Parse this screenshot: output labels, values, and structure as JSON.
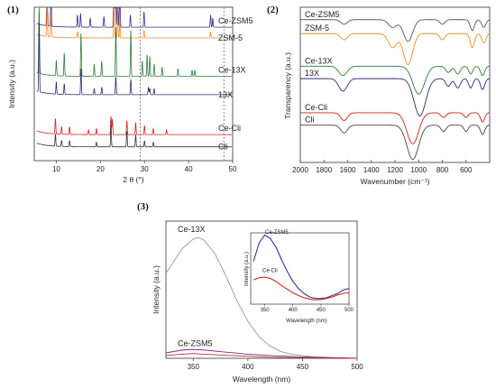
{
  "figure": {
    "panel_labels": [
      "(1)",
      "(2)",
      "(3)"
    ]
  },
  "chart_data": [
    {
      "type": "line",
      "panel": "(1)",
      "xlabel": "2 θ (°)",
      "ylabel": "Intensity (a.u.)",
      "xlim": [
        5,
        50
      ],
      "x_ticks": [
        "10",
        "20",
        "30",
        "40",
        "50"
      ],
      "reference_lines": [
        29,
        48
      ],
      "series": [
        {
          "name": "Ce-ZSM5",
          "color": "#3b2a8a",
          "offset": 0.87,
          "peaks": [
            [
              7.9,
              0.4
            ],
            [
              8.8,
              0.3
            ],
            [
              14.8,
              0.08
            ],
            [
              15.5,
              0.09
            ],
            [
              17.7,
              0.06
            ],
            [
              20.8,
              0.07
            ],
            [
              23.1,
              1.0
            ],
            [
              23.4,
              0.8
            ],
            [
              23.9,
              0.55
            ],
            [
              24.4,
              0.3
            ],
            [
              26.8,
              0.08
            ],
            [
              29.9,
              0.1
            ],
            [
              45.0,
              0.08
            ],
            [
              45.5,
              0.06
            ]
          ]
        },
        {
          "name": "ZSM-5",
          "color": "#ee8a22",
          "offset": 0.8,
          "peaks": [
            [
              7.9,
              0.22
            ],
            [
              8.8,
              0.16
            ],
            [
              14.8,
              0.04
            ],
            [
              23.1,
              0.26
            ],
            [
              23.9,
              0.18
            ],
            [
              24.4,
              0.1
            ],
            [
              29.9,
              0.05
            ],
            [
              45.0,
              0.04
            ]
          ]
        },
        {
          "name": "Ce-13X",
          "color": "#2f7d3a",
          "offset": 0.55,
          "peaks": [
            [
              6.1,
              0.45
            ],
            [
              10.0,
              0.1
            ],
            [
              11.8,
              0.15
            ],
            [
              15.6,
              0.28
            ],
            [
              18.6,
              0.08
            ],
            [
              20.3,
              0.1
            ],
            [
              23.5,
              0.32
            ],
            [
              26.9,
              0.3
            ],
            [
              29.5,
              0.1
            ],
            [
              30.6,
              0.14
            ],
            [
              31.2,
              0.13
            ],
            [
              32.2,
              0.08
            ],
            [
              34.0,
              0.06
            ],
            [
              37.6,
              0.05
            ],
            [
              40.8,
              0.04
            ],
            [
              41.4,
              0.04
            ]
          ]
        },
        {
          "name": "13X",
          "color": "#2d2d6e",
          "offset": 0.43,
          "peaks": [
            [
              6.1,
              0.45
            ],
            [
              10.0,
              0.08
            ],
            [
              11.8,
              0.07
            ],
            [
              15.6,
              0.17
            ],
            [
              18.6,
              0.04
            ],
            [
              20.3,
              0.05
            ],
            [
              23.5,
              0.12
            ],
            [
              26.9,
              0.1
            ],
            [
              30.9,
              0.05
            ],
            [
              31.2,
              0.04
            ],
            [
              32.2,
              0.04
            ]
          ]
        },
        {
          "name": "Ce-Cli",
          "color": "#cc2020",
          "offset": 0.17,
          "peaks": [
            [
              9.8,
              0.1
            ],
            [
              11.2,
              0.05
            ],
            [
              13.0,
              0.05
            ],
            [
              17.3,
              0.03
            ],
            [
              19.1,
              0.04
            ],
            [
              22.4,
              0.12
            ],
            [
              22.7,
              0.1
            ],
            [
              26.0,
              0.09
            ],
            [
              28.0,
              0.08
            ],
            [
              30.0,
              0.06
            ],
            [
              32.0,
              0.04
            ],
            [
              35.0,
              0.03
            ]
          ]
        },
        {
          "name": "Cli",
          "color": "#333333",
          "offset": 0.09,
          "peaks": [
            [
              9.8,
              0.08
            ],
            [
              11.2,
              0.04
            ],
            [
              13.0,
              0.04
            ],
            [
              19.1,
              0.03
            ],
            [
              22.4,
              0.14
            ],
            [
              26.0,
              0.1
            ],
            [
              28.0,
              0.08
            ],
            [
              30.0,
              0.04
            ],
            [
              32.0,
              0.03
            ]
          ]
        }
      ]
    },
    {
      "type": "line",
      "panel": "(2)",
      "xlabel": "Wavenumber (cm⁻¹)",
      "ylabel": "Transparency (a.u.)",
      "xlim": [
        2000,
        400
      ],
      "x_ticks": [
        "2000",
        "1800",
        "1600",
        "1400",
        "1200",
        "1000",
        "800",
        "600"
      ],
      "series": [
        {
          "name": "Ce-ZSM5",
          "color": "#555555",
          "offset": 0.92,
          "bands": [
            [
              1630,
              0.03,
              40
            ],
            [
              1220,
              0.05,
              50
            ],
            [
              1090,
              0.14,
              55
            ],
            [
              800,
              0.03,
              30
            ],
            [
              547,
              0.07,
              25
            ],
            [
              450,
              0.05,
              25
            ]
          ]
        },
        {
          "name": "ZSM-5",
          "color": "#ee8a22",
          "offset": 0.83,
          "bands": [
            [
              1630,
              0.04,
              40
            ],
            [
              1220,
              0.09,
              50
            ],
            [
              1090,
              0.2,
              55
            ],
            [
              800,
              0.04,
              30
            ],
            [
              547,
              0.09,
              25
            ],
            [
              450,
              0.06,
              25
            ]
          ]
        },
        {
          "name": "Ce-13X",
          "color": "#2f7d3a",
          "offset": 0.62,
          "bands": [
            [
              1640,
              0.06,
              50
            ],
            [
              1000,
              0.18,
              70
            ],
            [
              750,
              0.04,
              30
            ],
            [
              670,
              0.05,
              30
            ],
            [
              560,
              0.05,
              25
            ],
            [
              460,
              0.06,
              25
            ]
          ]
        },
        {
          "name": "13X",
          "color": "#2d2d6e",
          "offset": 0.54,
          "bands": [
            [
              1640,
              0.08,
              50
            ],
            [
              990,
              0.24,
              70
            ],
            [
              750,
              0.05,
              30
            ],
            [
              670,
              0.06,
              30
            ],
            [
              560,
              0.06,
              25
            ],
            [
              460,
              0.07,
              25
            ]
          ]
        },
        {
          "name": "Ce-Cli",
          "color": "#cc2020",
          "offset": 0.32,
          "bands": [
            [
              1630,
              0.05,
              40
            ],
            [
              1050,
              0.2,
              70
            ],
            [
              790,
              0.03,
              30
            ],
            [
              600,
              0.03,
              25
            ],
            [
              460,
              0.06,
              25
            ]
          ]
        },
        {
          "name": "Cli",
          "color": "#444444",
          "offset": 0.24,
          "bands": [
            [
              1630,
              0.05,
              40
            ],
            [
              1050,
              0.22,
              70
            ],
            [
              790,
              0.04,
              30
            ],
            [
              600,
              0.04,
              25
            ],
            [
              460,
              0.06,
              25
            ]
          ]
        }
      ]
    },
    {
      "type": "line",
      "panel": "(3)",
      "xlabel": "Wavelength (nm)",
      "ylabel": "Intensity (a.u.)",
      "xlim": [
        325,
        500
      ],
      "x_ticks": [
        "350",
        "400",
        "450",
        "500"
      ],
      "series": [
        {
          "name": "Ce-13X",
          "color": "#8aa090",
          "points": [
            [
              325,
              0.62
            ],
            [
              330,
              0.68
            ],
            [
              340,
              0.8
            ],
            [
              350,
              0.87
            ],
            [
              355,
              0.88
            ],
            [
              360,
              0.86
            ],
            [
              370,
              0.76
            ],
            [
              380,
              0.6
            ],
            [
              390,
              0.42
            ],
            [
              400,
              0.27
            ],
            [
              410,
              0.16
            ],
            [
              420,
              0.09
            ],
            [
              430,
              0.05
            ],
            [
              440,
              0.03
            ],
            [
              450,
              0.02
            ],
            [
              460,
              0.01
            ],
            [
              480,
              0.005
            ],
            [
              500,
              0.0
            ]
          ]
        },
        {
          "name": "Ce-ZSM5",
          "color": "#7a2a7a",
          "points": [
            [
              325,
              0.04
            ],
            [
              340,
              0.06
            ],
            [
              350,
              0.065
            ],
            [
              360,
              0.06
            ],
            [
              380,
              0.045
            ],
            [
              400,
              0.03
            ],
            [
              420,
              0.02
            ],
            [
              450,
              0.01
            ],
            [
              500,
              0.0
            ]
          ]
        },
        {
          "name": "Ce-Cli",
          "color": "#c03030",
          "points": [
            [
              325,
              0.02
            ],
            [
              340,
              0.03
            ],
            [
              350,
              0.035
            ],
            [
              360,
              0.03
            ],
            [
              380,
              0.022
            ],
            [
              400,
              0.015
            ],
            [
              420,
              0.008
            ],
            [
              450,
              0.004
            ],
            [
              500,
              0.0
            ]
          ]
        }
      ],
      "inset": {
        "xlabel": "Wavelength (nm)",
        "ylabel": "Intensity (a.u.)",
        "xlim": [
          325,
          500
        ],
        "x_ticks": [
          "350",
          "400",
          "450",
          "500"
        ],
        "series": [
          {
            "name": "Ce-ZSM5",
            "color": "#4a2a8a",
            "points": [
              [
                330,
                0.6
              ],
              [
                340,
                0.86
              ],
              [
                350,
                0.97
              ],
              [
                360,
                0.92
              ],
              [
                370,
                0.8
              ],
              [
                380,
                0.62
              ],
              [
                390,
                0.46
              ],
              [
                400,
                0.32
              ],
              [
                410,
                0.22
              ],
              [
                420,
                0.15
              ],
              [
                430,
                0.1
              ],
              [
                440,
                0.08
              ],
              [
                450,
                0.08
              ],
              [
                460,
                0.09
              ],
              [
                470,
                0.12
              ],
              [
                480,
                0.15
              ],
              [
                490,
                0.2
              ],
              [
                500,
                0.22
              ]
            ]
          },
          {
            "name": "Ce-Cli",
            "color": "#d02828",
            "points": [
              [
                330,
                0.34
              ],
              [
                340,
                0.37
              ],
              [
                350,
                0.38
              ],
              [
                360,
                0.36
              ],
              [
                370,
                0.32
              ],
              [
                380,
                0.26
              ],
              [
                390,
                0.21
              ],
              [
                400,
                0.16
              ],
              [
                410,
                0.12
              ],
              [
                420,
                0.09
              ],
              [
                430,
                0.07
              ],
              [
                440,
                0.06
              ],
              [
                450,
                0.065
              ],
              [
                460,
                0.08
              ],
              [
                470,
                0.1
              ],
              [
                480,
                0.13
              ],
              [
                490,
                0.15
              ],
              [
                500,
                0.16
              ]
            ]
          }
        ]
      }
    }
  ]
}
